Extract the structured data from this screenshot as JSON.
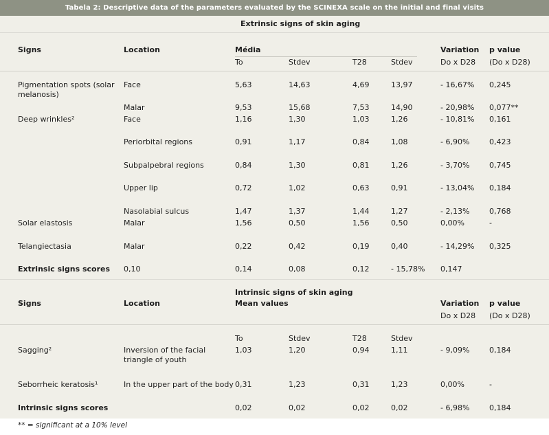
{
  "title": "Tabela 2: Descriptive data of the parameters evaluated by the SCINEXA scale on the initial and final visits",
  "extrinsic": {
    "heading": "Extrinsic signs of skin aging",
    "header": {
      "signs": "Signs",
      "location": "Location",
      "group": "Média",
      "to": "To",
      "stdev1": "Stdev",
      "t28": "T28",
      "stdev2": "Stdev",
      "variation": "Variation",
      "variation_sub": "Do x D28",
      "pvalue": "p value",
      "pvalue_sub": "(Do x D28)"
    },
    "rows": [
      {
        "sign": "Pigmentation spots (solar melanosis)",
        "location": "Face",
        "to": "5,63",
        "stdev1": "14,63",
        "t28": "4,69",
        "stdev2": "13,97",
        "variation": "- 16,67%",
        "pvalue": "0,245"
      },
      {
        "sign": "",
        "location": "Malar",
        "to": "9,53",
        "stdev1": "15,68",
        "t28": "7,53",
        "stdev2": "14,90",
        "variation": "- 20,98%",
        "pvalue": "0,077**"
      },
      {
        "sign": "Deep wrinkles²",
        "location": "Face",
        "to": "1,16",
        "stdev1": "1,30",
        "t28": "1,03",
        "stdev2": "1,26",
        "variation": "- 10,81%",
        "pvalue": "0,161"
      },
      {
        "sign": "",
        "location": "Periorbital regions",
        "to": "0,91",
        "stdev1": "1,17",
        "t28": "0,84",
        "stdev2": "1,08",
        "variation": "- 6,90%",
        "pvalue": "0,423"
      },
      {
        "sign": "",
        "location": "Subpalpebral regions",
        "to": "0,84",
        "stdev1": "1,30",
        "t28": "0,81",
        "stdev2": "1,26",
        "variation": "- 3,70%",
        "pvalue": "0,745"
      },
      {
        "sign": "",
        "location": "Upper lip",
        "to": "0,72",
        "stdev1": "1,02",
        "t28": "0,63",
        "stdev2": "0,91",
        "variation": "- 13,04%",
        "pvalue": "0,184"
      },
      {
        "sign": "",
        "location": "Nasolabial sulcus",
        "to": "1,47",
        "stdev1": "1,37",
        "t28": "1,44",
        "stdev2": "1,27",
        "variation": "- 2,13%",
        "pvalue": "0,768"
      },
      {
        "sign": "Solar elastosis",
        "location": "Malar",
        "to": "1,56",
        "stdev1": "0,50",
        "t28": "1,56",
        "stdev2": "0,50",
        "variation": "0,00%",
        "pvalue": "-"
      },
      {
        "sign": "Telangiectasia",
        "location": "Malar",
        "to": "0,22",
        "stdev1": "0,42",
        "t28": "0,19",
        "stdev2": "0,40",
        "variation": "- 14,29%",
        "pvalue": "0,325"
      }
    ],
    "score": {
      "sign": "Extrinsic signs scores",
      "c1": "0,10",
      "c2": "0,14",
      "c3": "0,08",
      "c4": "0,12",
      "c5": "- 15,78%",
      "c6": "0,147"
    }
  },
  "intrinsic": {
    "heading": "Intrinsic signs of skin aging",
    "header": {
      "signs": "Signs",
      "location": "Location",
      "group": "Mean values",
      "variation": "Variation",
      "variation_sub": "Do x D28",
      "pvalue": "p value",
      "pvalue_sub": "(Do x D28)"
    },
    "subheader": {
      "to": "To",
      "stdev1": "Stdev",
      "t28": "T28",
      "stdev2": "Stdev"
    },
    "rows": [
      {
        "sign": "Sagging²",
        "location": "Inversion of the facial triangle of youth",
        "to": "1,03",
        "stdev1": "1,20",
        "t28": "0,94",
        "stdev2": "1,11",
        "variation": "- 9,09%",
        "pvalue": "0,184"
      },
      {
        "sign": "Seborrheic keratosis¹",
        "location": "In the upper part of the body",
        "to": "0,31",
        "stdev1": "1,23",
        "t28": "0,31",
        "stdev2": "1,23",
        "variation": "0,00%",
        "pvalue": "-"
      }
    ],
    "score": {
      "sign": "Intrinsic signs scores",
      "to": "0,02",
      "stdev1": "0,02",
      "t28": "0,02",
      "stdev2": "0,02",
      "variation": "- 6,98%",
      "pvalue": "0,184"
    }
  },
  "footnote": "** = significant at a 10% level"
}
